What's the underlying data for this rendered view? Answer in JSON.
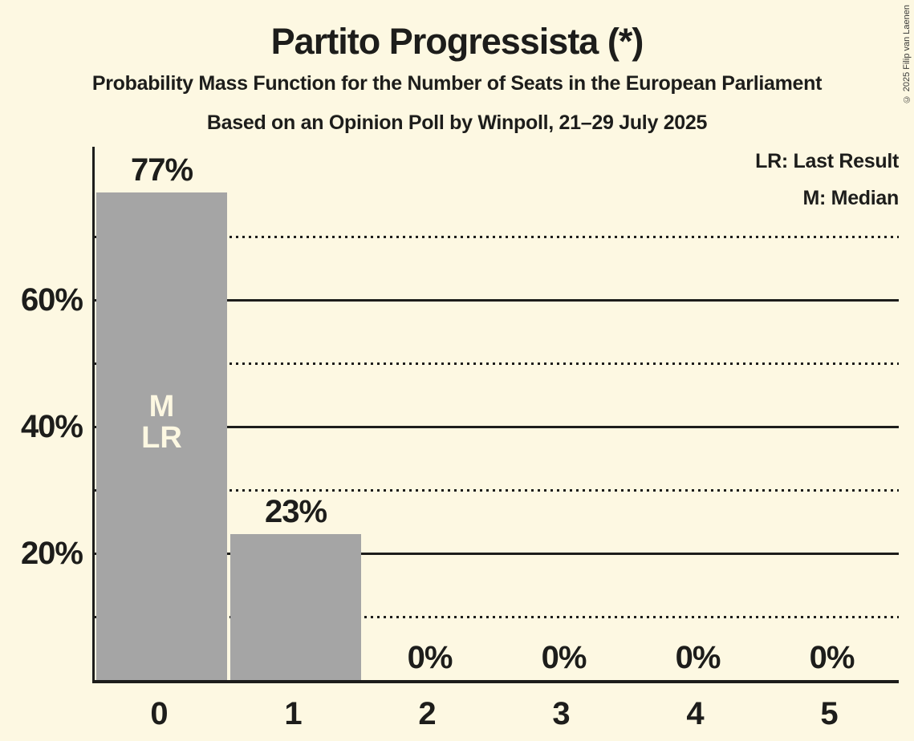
{
  "page": {
    "background_color": "#fdf8e2",
    "text_color": "#1d1d1b"
  },
  "header": {
    "title": "Partito Progressista (*)",
    "subtitle1": "Probability Mass Function for the Number of Seats in the European Parliament",
    "subtitle2": "Based on an Opinion Poll by Winpoll, 21–29 July 2025"
  },
  "legend": {
    "lr_label": "LR: Last Result",
    "m_label": "M: Median"
  },
  "copyright": "© 2025 Filip van Laenen",
  "chart_data": {
    "type": "bar",
    "title": "Partito Progressista (*)",
    "subtitle": "Probability Mass Function for the Number of Seats in the European Parliament",
    "source_line": "Based on an Opinion Poll by Winpoll, 21–29 July 2025",
    "xlabel": "",
    "ylabel": "",
    "categories": [
      "0",
      "1",
      "2",
      "3",
      "4",
      "5"
    ],
    "values": [
      77,
      23,
      0,
      0,
      0,
      0
    ],
    "value_labels": [
      "77%",
      "23%",
      "0%",
      "0%",
      "0%",
      "0%"
    ],
    "ylim": [
      0,
      84
    ],
    "y_solid_gridlines": [
      20,
      40,
      60
    ],
    "y_dotted_gridlines": [
      10,
      30,
      50,
      70
    ],
    "y_tick_values": [
      20,
      40,
      60
    ],
    "y_tick_labels": [
      "20%",
      "40%",
      "60%"
    ],
    "legend_entries": [
      "LR: Last Result",
      "M: Median"
    ],
    "annotations": [
      {
        "bar_index": 0,
        "lines": "M\nLR",
        "meaning": "median-and-last-result-marker"
      }
    ],
    "bar_color": "#a5a5a5",
    "background_color": "#fdf8e2",
    "in_bar_text_color": "#fdf8e2",
    "grid_on": true,
    "legend_position": "top-right"
  }
}
